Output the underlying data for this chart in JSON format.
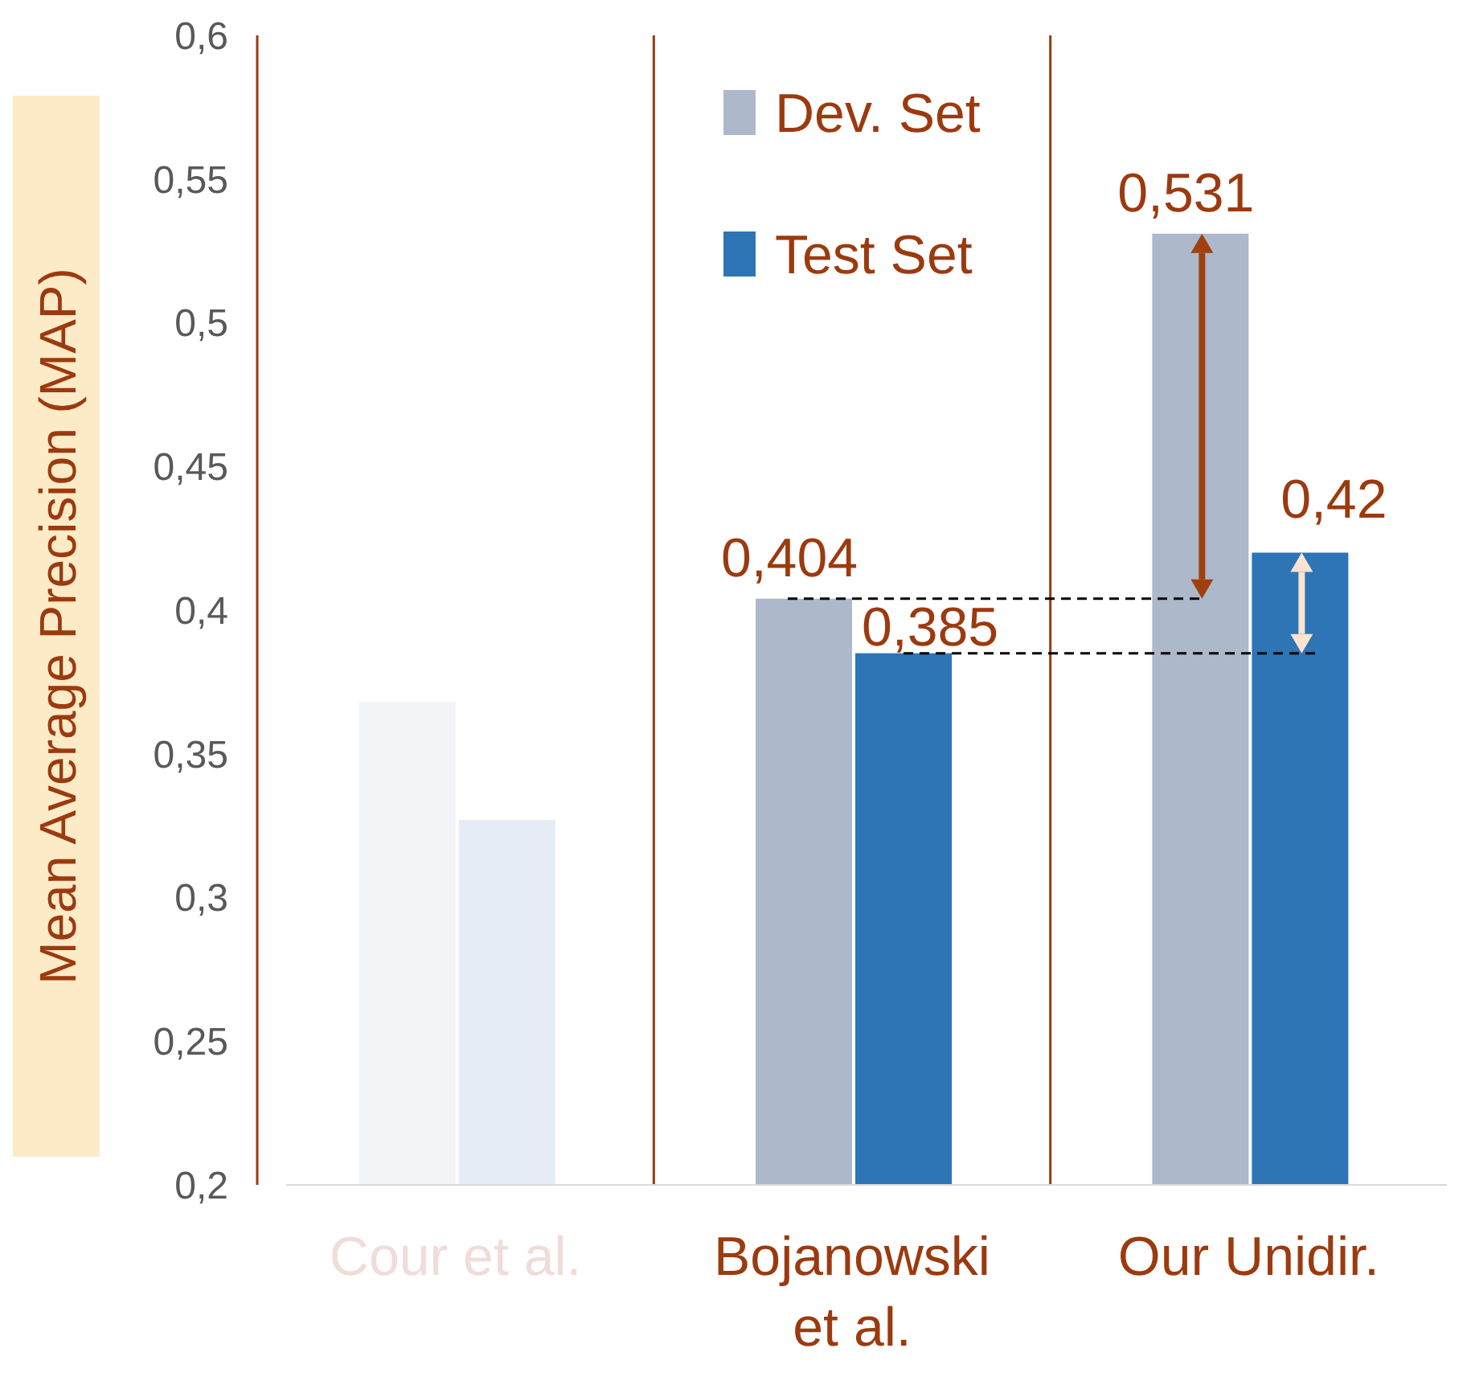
{
  "chart_data": {
    "type": "bar",
    "categories": [
      "Cour et al.",
      "Bojanowski et al.",
      "Our Unidir."
    ],
    "ylabel": "Mean Average Precision (MAP)",
    "series": [
      {
        "name": "Dev. Set",
        "color": "#adb9ca",
        "colors": [
          "#f3f4f7",
          "#adb9ca",
          "#adb9ca"
        ],
        "values": [
          0.368,
          0.404,
          0.531
        ],
        "value_labels": [
          null,
          "0,404",
          "0,531"
        ]
      },
      {
        "name": "Test Set",
        "color": "#2e75b6",
        "colors": [
          "#e5ecf6",
          "#2e75b6",
          "#2e75b6"
        ],
        "values": [
          0.327,
          0.385,
          0.42
        ],
        "value_labels": [
          null,
          "0,385",
          "0,42"
        ]
      }
    ],
    "ylim": [
      0.2,
      0.6
    ],
    "yticks": [
      {
        "value": 0.2,
        "label": "0,2"
      },
      {
        "value": 0.25,
        "label": "0,25"
      },
      {
        "value": 0.3,
        "label": "0,3"
      },
      {
        "value": 0.35,
        "label": "0,35"
      },
      {
        "value": 0.4,
        "label": "0,4"
      },
      {
        "value": 0.45,
        "label": "0,45"
      },
      {
        "value": 0.5,
        "label": "0,5"
      },
      {
        "value": 0.55,
        "label": "0,55"
      },
      {
        "value": 0.6,
        "label": "0,6"
      }
    ],
    "ref_lines": [
      {
        "axis": "y",
        "value": 0.404,
        "color": "#000000",
        "line_style": "dashed"
      },
      {
        "axis": "y",
        "value": 0.385,
        "color": "#000000",
        "line_style": "dashed"
      }
    ],
    "grid": "x",
    "legend": "top"
  }
}
